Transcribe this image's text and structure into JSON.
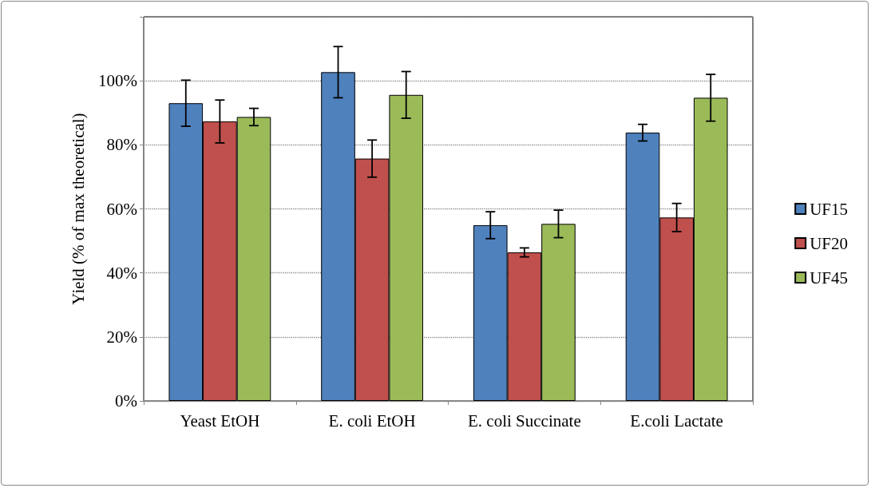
{
  "chart_data": {
    "type": "bar",
    "ylabel": "Yield (% of max theoretical)",
    "categories": [
      "Yeast EtOH",
      "E. coli EtOH",
      "E. coli Succinate",
      "E.coli Lactate"
    ],
    "series": [
      {
        "name": "UF15",
        "color": "#4f81bd",
        "values": [
          93.0,
          102.7,
          54.9,
          83.8
        ],
        "errors": [
          7.2,
          8.0,
          4.2,
          2.6
        ]
      },
      {
        "name": "UF20",
        "color": "#c0504d",
        "values": [
          87.3,
          75.7,
          46.4,
          57.3
        ],
        "errors": [
          6.7,
          5.8,
          1.4,
          4.4
        ]
      },
      {
        "name": "UF45",
        "color": "#9bbb59",
        "values": [
          88.7,
          95.6,
          55.3,
          94.7
        ],
        "errors": [
          2.7,
          7.3,
          4.3,
          7.3
        ]
      }
    ],
    "ylim": [
      0,
      120
    ],
    "yticks": [
      {
        "value": 0,
        "label": "0%"
      },
      {
        "value": 20,
        "label": "20%"
      },
      {
        "value": 40,
        "label": "40%"
      },
      {
        "value": 60,
        "label": "60%"
      },
      {
        "value": 80,
        "label": "80%"
      },
      {
        "value": 100,
        "label": "100%"
      },
      {
        "value": 120,
        "label": null
      }
    ],
    "grid": "y",
    "legend": "right"
  }
}
